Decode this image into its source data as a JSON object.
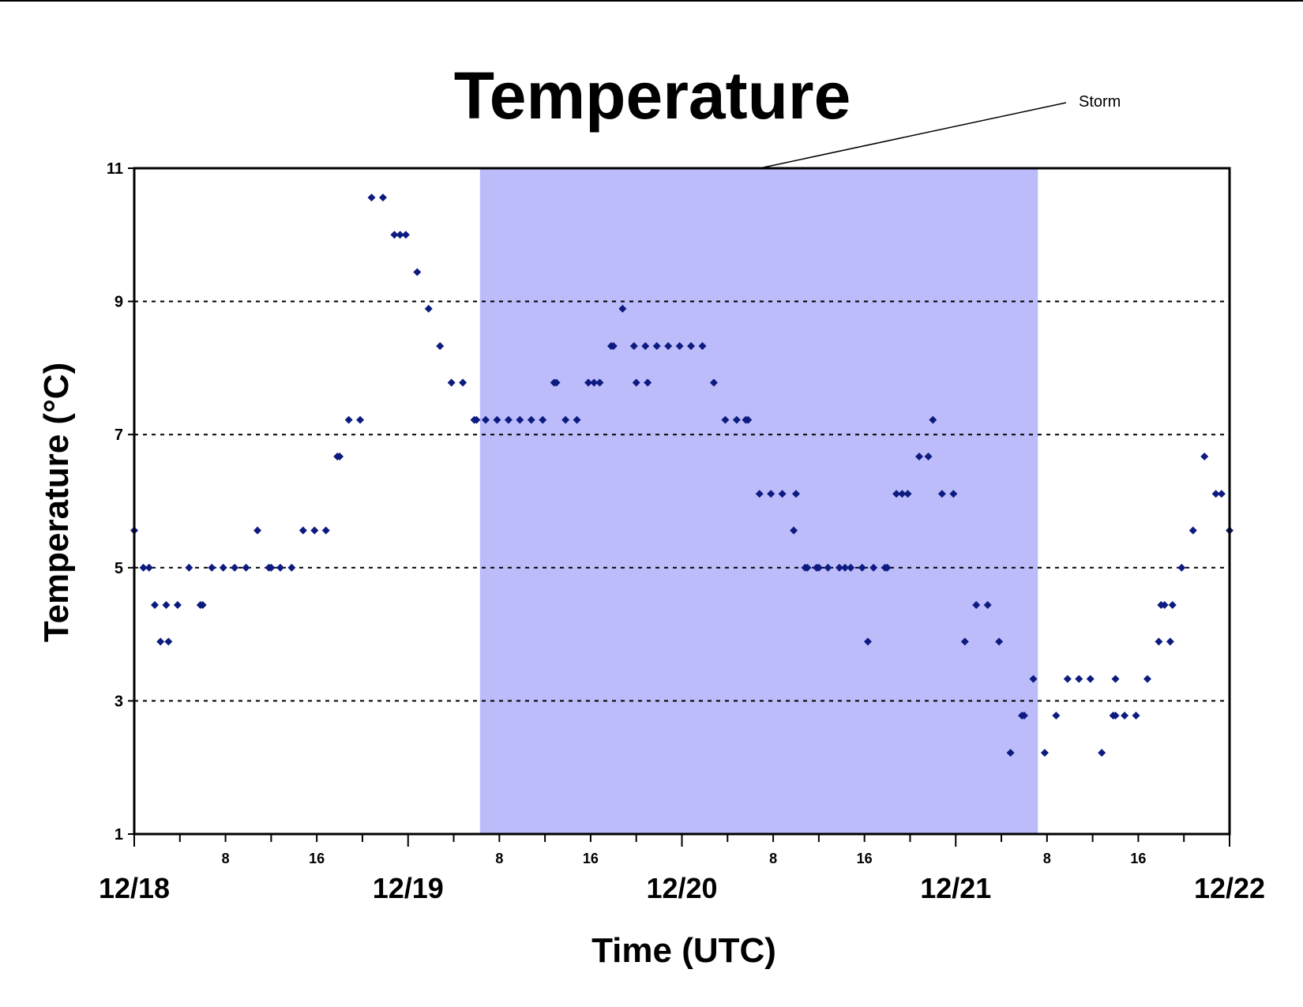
{
  "chart_data": {
    "type": "scatter",
    "title": "Temperature",
    "xlabel": "Time (UTC)",
    "ylabel": "Temperature (°C)",
    "ylim": [
      1,
      11
    ],
    "y_ticks": [
      "1",
      "3",
      "5",
      "7",
      "9",
      "11"
    ],
    "xlim_hours": [
      0,
      96
    ],
    "x_major_ticks": [
      "12/18",
      "12/19",
      "12/20",
      "12/21",
      "12/22"
    ],
    "x_minor_labels": [
      "8",
      "16"
    ],
    "grid": "horizontal dotted at 3, 5, 7, 9",
    "marker_color": "#0d1a80",
    "band_color": "#bcbcfa",
    "storm": {
      "label": "Storm",
      "start_hour": 30.3,
      "end_hour": 79.2
    },
    "series": [
      {
        "points": [
          [
            0,
            5.56
          ],
          [
            0.8,
            5
          ],
          [
            1.3,
            5
          ],
          [
            1.8,
            4.44
          ],
          [
            2.3,
            3.89
          ],
          [
            2.8,
            4.44
          ],
          [
            3.0,
            3.89
          ],
          [
            3.8,
            4.44
          ],
          [
            4.8,
            5
          ],
          [
            5.8,
            4.44
          ],
          [
            6.0,
            4.44
          ],
          [
            6.8,
            5
          ],
          [
            7.8,
            5
          ],
          [
            8.8,
            5
          ],
          [
            9.8,
            5
          ],
          [
            10.8,
            5.56
          ],
          [
            11.8,
            5
          ],
          [
            12.0,
            5
          ],
          [
            12.8,
            5
          ],
          [
            13.8,
            5
          ],
          [
            14.8,
            5.56
          ],
          [
            15.8,
            5.56
          ],
          [
            16.8,
            5.56
          ],
          [
            17.8,
            6.67
          ],
          [
            18.0,
            6.67
          ],
          [
            18.8,
            7.22
          ],
          [
            19.8,
            7.22
          ],
          [
            20.8,
            10.56
          ],
          [
            21.8,
            10.56
          ],
          [
            22.8,
            10
          ],
          [
            23.3,
            10
          ],
          [
            23.8,
            10
          ],
          [
            24.8,
            9.44
          ],
          [
            25.8,
            8.89
          ],
          [
            26.8,
            8.33
          ],
          [
            27.8,
            7.78
          ],
          [
            28.8,
            7.78
          ],
          [
            29.8,
            7.22
          ],
          [
            30.0,
            7.22
          ],
          [
            30.8,
            7.22
          ],
          [
            31.8,
            7.22
          ],
          [
            32.8,
            7.22
          ],
          [
            33.8,
            7.22
          ],
          [
            34.8,
            7.22
          ],
          [
            35.8,
            7.22
          ],
          [
            36.8,
            7.78
          ],
          [
            37.0,
            7.78
          ],
          [
            37.8,
            7.22
          ],
          [
            38.8,
            7.22
          ],
          [
            39.8,
            7.78
          ],
          [
            40.3,
            7.78
          ],
          [
            40.8,
            7.78
          ],
          [
            41.8,
            8.33
          ],
          [
            42.0,
            8.33
          ],
          [
            42.8,
            8.89
          ],
          [
            43.8,
            8.33
          ],
          [
            44.0,
            7.78
          ],
          [
            44.8,
            8.33
          ],
          [
            45.0,
            7.78
          ],
          [
            45.8,
            8.33
          ],
          [
            46.8,
            8.33
          ],
          [
            47.8,
            8.33
          ],
          [
            48.8,
            8.33
          ],
          [
            49.8,
            8.33
          ],
          [
            50.8,
            7.78
          ],
          [
            51.8,
            7.22
          ],
          [
            52.8,
            7.22
          ],
          [
            53.6,
            7.22
          ],
          [
            53.8,
            7.22
          ],
          [
            54.8,
            6.11
          ],
          [
            55.8,
            6.11
          ],
          [
            56.8,
            6.11
          ],
          [
            57.8,
            5.56
          ],
          [
            58.0,
            6.11
          ],
          [
            58.8,
            5
          ],
          [
            59.0,
            5
          ],
          [
            59.8,
            5
          ],
          [
            60.0,
            5
          ],
          [
            60.8,
            5
          ],
          [
            61.8,
            5
          ],
          [
            62.3,
            5
          ],
          [
            62.8,
            5
          ],
          [
            63.8,
            5
          ],
          [
            64.3,
            3.89
          ],
          [
            64.8,
            5
          ],
          [
            65.8,
            5
          ],
          [
            66.0,
            5
          ],
          [
            66.8,
            6.11
          ],
          [
            67.3,
            6.11
          ],
          [
            67.8,
            6.11
          ],
          [
            68.8,
            6.67
          ],
          [
            69.6,
            6.67
          ],
          [
            70.0,
            7.22
          ],
          [
            70.8,
            6.11
          ],
          [
            71.8,
            6.11
          ],
          [
            72.8,
            3.89
          ],
          [
            73.8,
            4.44
          ],
          [
            74.8,
            4.44
          ],
          [
            75.8,
            3.89
          ],
          [
            76.8,
            2.22
          ],
          [
            77.8,
            2.78
          ],
          [
            78.0,
            2.78
          ],
          [
            78.8,
            3.33
          ],
          [
            79.8,
            2.22
          ],
          [
            80.8,
            2.78
          ],
          [
            81.8,
            3.33
          ],
          [
            82.8,
            3.33
          ],
          [
            83.8,
            3.33
          ],
          [
            84.8,
            2.22
          ],
          [
            85.8,
            2.78
          ],
          [
            86.0,
            2.78
          ],
          [
            86.0,
            3.33
          ],
          [
            86.8,
            2.78
          ],
          [
            87.8,
            2.78
          ],
          [
            88.8,
            3.33
          ],
          [
            89.8,
            3.89
          ],
          [
            90.0,
            4.44
          ],
          [
            90.3,
            4.44
          ],
          [
            90.8,
            3.89
          ],
          [
            91.0,
            4.44
          ],
          [
            91.8,
            5
          ],
          [
            92.8,
            5.56
          ],
          [
            93.8,
            6.67
          ],
          [
            94.8,
            6.11
          ],
          [
            95.3,
            6.11
          ],
          [
            96,
            5.56
          ]
        ]
      }
    ]
  }
}
